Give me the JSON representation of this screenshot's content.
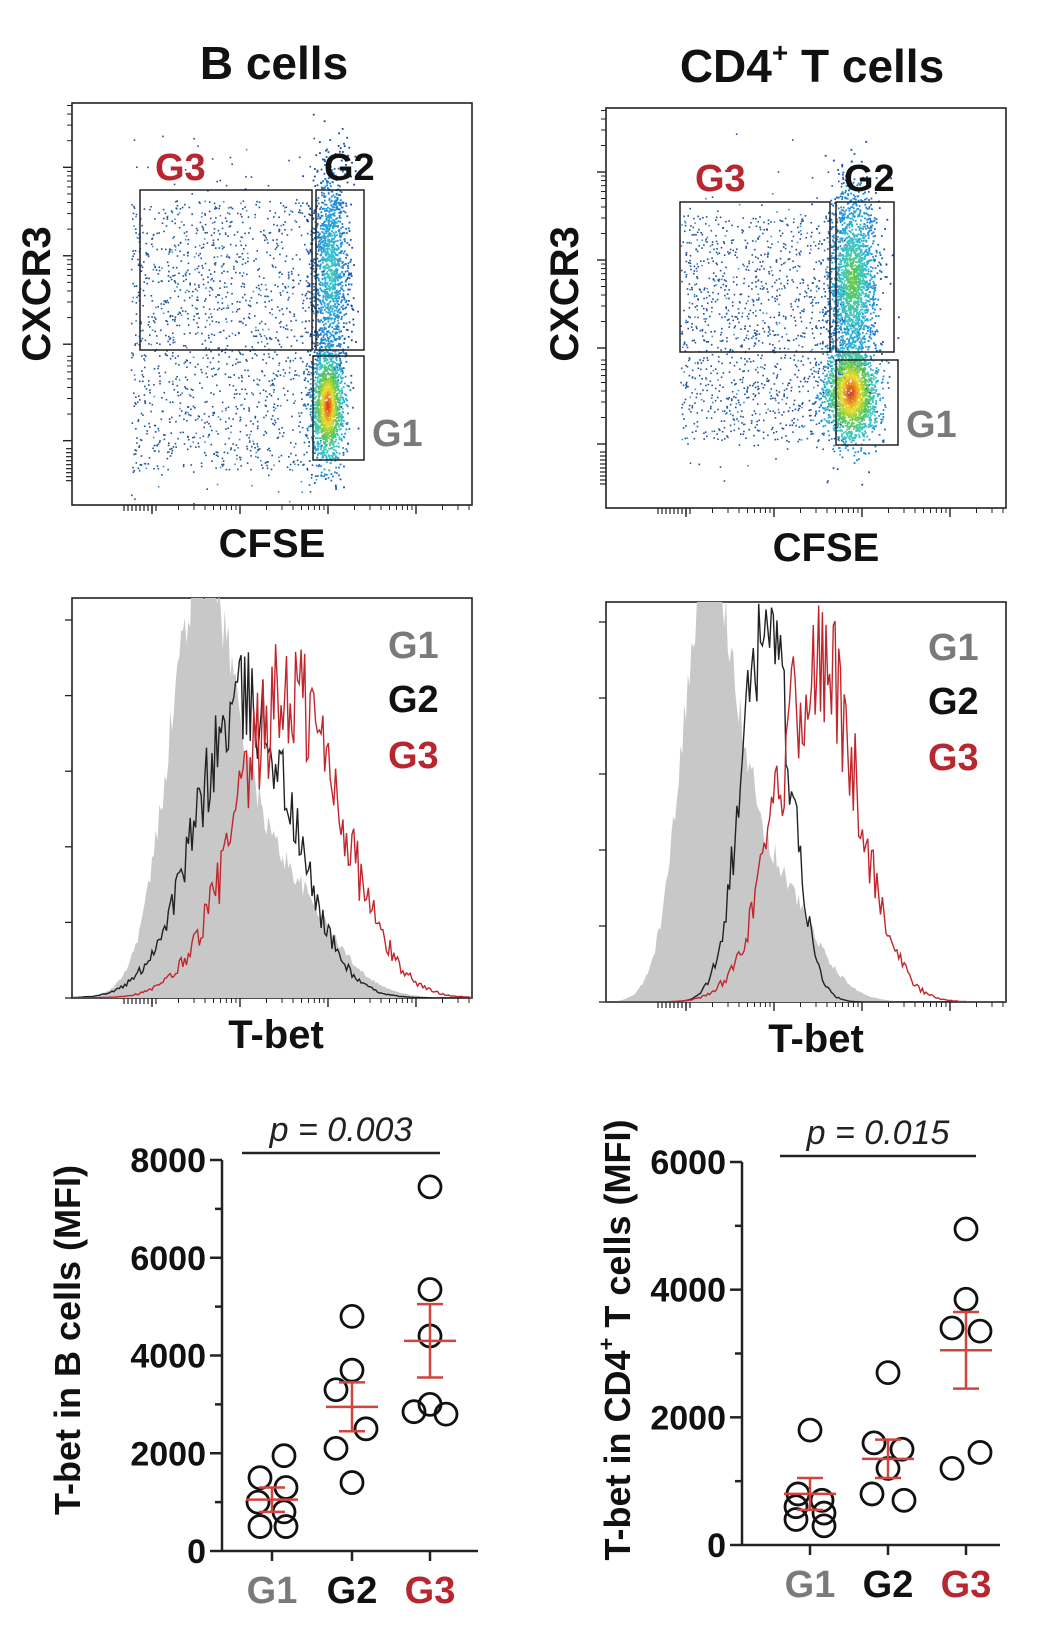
{
  "colors": {
    "g1": "#7a7a7a",
    "g2": "#111111",
    "g3": "#b8262f",
    "mean": "#d2453f",
    "shade": "#c8c8c8"
  },
  "panels": {
    "b_title": "B cells",
    "t_title_main": "CD4",
    "t_title_sup": "+",
    "t_title_rest": " T cells"
  },
  "flow": {
    "ylabel": "CXCR3",
    "xlabel": "CFSE",
    "gates": {
      "g1": "G1",
      "g2": "G2",
      "g3": "G3"
    }
  },
  "hist": {
    "xlabel": "T-bet",
    "legend": [
      "G1",
      "G2",
      "G3"
    ]
  },
  "chart_data": [
    {
      "type": "scatter",
      "title": "",
      "ylabel": "T-bet in B cells (MFI)",
      "xlabel": "",
      "categories": [
        "G1",
        "G2",
        "G3"
      ],
      "ylim": [
        0,
        8000
      ],
      "yticks": [
        0,
        2000,
        4000,
        6000,
        8000
      ],
      "pvalue": "p = 0.003",
      "series": [
        {
          "name": "G1",
          "values": [
            1950,
            1500,
            1300,
            1000,
            800,
            500,
            500
          ],
          "mean": 1050,
          "sem": 250
        },
        {
          "name": "G2",
          "values": [
            4800,
            3700,
            3300,
            2500,
            2100,
            1400
          ],
          "mean": 2950,
          "sem": 500
        },
        {
          "name": "G3",
          "values": [
            7450,
            5350,
            4400,
            3000,
            2850,
            2800
          ],
          "mean": 4300,
          "sem": 750
        }
      ]
    },
    {
      "type": "scatter",
      "title": "",
      "ylabel_main": "T-bet in CD4",
      "ylabel_sup": "+",
      "ylabel_rest": " T cells (MFI)",
      "xlabel": "",
      "categories": [
        "G1",
        "G2",
        "G3"
      ],
      "ylim": [
        0,
        6000
      ],
      "yticks": [
        0,
        2000,
        4000,
        6000
      ],
      "pvalue": "p = 0.015",
      "series": [
        {
          "name": "G1",
          "values": [
            1800,
            800,
            700,
            600,
            500,
            400,
            300
          ],
          "mean": 800,
          "sem": 250
        },
        {
          "name": "G2",
          "values": [
            2700,
            1600,
            1500,
            1200,
            800,
            700
          ],
          "mean": 1350,
          "sem": 300
        },
        {
          "name": "G3",
          "values": [
            4950,
            3850,
            3400,
            3350,
            1450,
            1200
          ],
          "mean": 3050,
          "sem": 600
        }
      ]
    }
  ]
}
